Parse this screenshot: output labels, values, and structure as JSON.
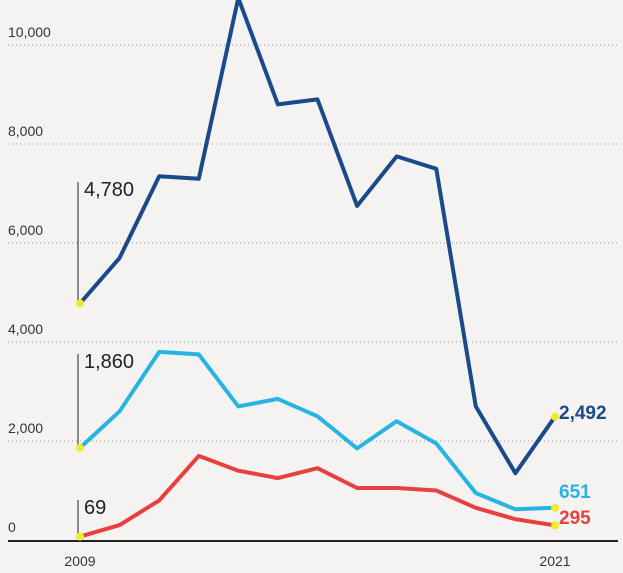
{
  "chart_data": {
    "type": "line",
    "x": [
      2009,
      2010,
      2011,
      2012,
      2013,
      2014,
      2015,
      2016,
      2017,
      2018,
      2019,
      2020,
      2021
    ],
    "x_tick_labels": [
      "2009",
      "2021"
    ],
    "ylim": [
      0,
      11000
    ],
    "y_ticks": [
      0,
      2000,
      4000,
      6000,
      8000,
      10000
    ],
    "y_tick_labels": [
      "0",
      "2,000",
      "4,000",
      "6,000",
      "8,000",
      "10,000"
    ],
    "grid": true,
    "series": [
      {
        "color": "#1a4a8a",
        "values": [
          4780,
          5700,
          7350,
          7300,
          10950,
          8800,
          8900,
          6750,
          7750,
          7500,
          2700,
          1350,
          2492
        ],
        "start_label": "4,780",
        "end_label": "2,492"
      },
      {
        "color": "#27b4e2",
        "values": [
          1860,
          2600,
          3800,
          3750,
          2700,
          2850,
          2500,
          1850,
          2400,
          1950,
          950,
          620,
          651
        ],
        "start_label": "1,860",
        "end_label": "651"
      },
      {
        "color": "#e8403c",
        "values": [
          69,
          300,
          800,
          1700,
          1400,
          1250,
          1450,
          1050,
          1050,
          1000,
          650,
          420,
          295
        ],
        "start_label": "69",
        "end_label": "295"
      }
    ],
    "endpoint_marker_color": "#f2ea2a"
  }
}
